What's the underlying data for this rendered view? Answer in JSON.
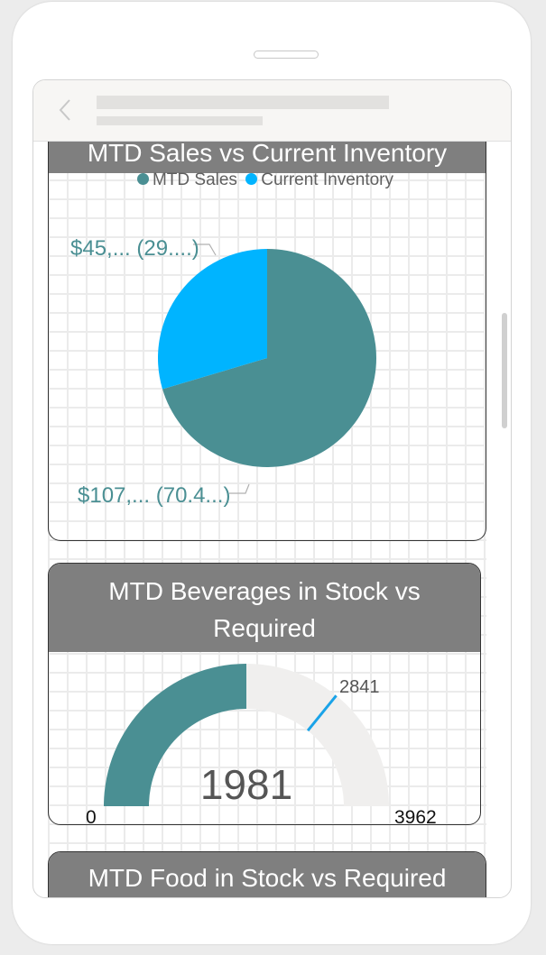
{
  "colors": {
    "teal": "#4a8f93",
    "blue": "#00b4ff",
    "card_header": "#7f7f7f",
    "gauge_empty": "#f0efee",
    "target_line": "#1aa3e8"
  },
  "header": {
    "back_icon": "chevron-left-icon"
  },
  "cards": [
    {
      "title": "MTD Sales vs Current Inventory",
      "legend": [
        {
          "label": "MTD Sales",
          "color": "#4a8f93"
        },
        {
          "label": "Current Inventory",
          "color": "#00b4ff"
        }
      ],
      "slice_labels": {
        "inventory": "$45,... (29....)",
        "sales": "$107,... (70.4...)"
      }
    },
    {
      "title": "MTD Beverages in Stock vs Required",
      "gauge": {
        "value": 1981,
        "min": 0,
        "max": 3962,
        "target": 2841,
        "value_label": "1981",
        "min_label": "0",
        "max_label": "3962",
        "target_label": "2841"
      }
    },
    {
      "title": "MTD Food in Stock vs Required"
    }
  ],
  "chart_data": [
    {
      "type": "pie",
      "title": "MTD Sales vs Current Inventory",
      "categories": [
        "MTD Sales",
        "Current Inventory"
      ],
      "values": [
        70.4,
        29.6
      ],
      "value_unit": "percent",
      "labels": [
        "$107,... (70.4...)",
        "$45,... (29....)"
      ],
      "legend": "top"
    }
  ]
}
